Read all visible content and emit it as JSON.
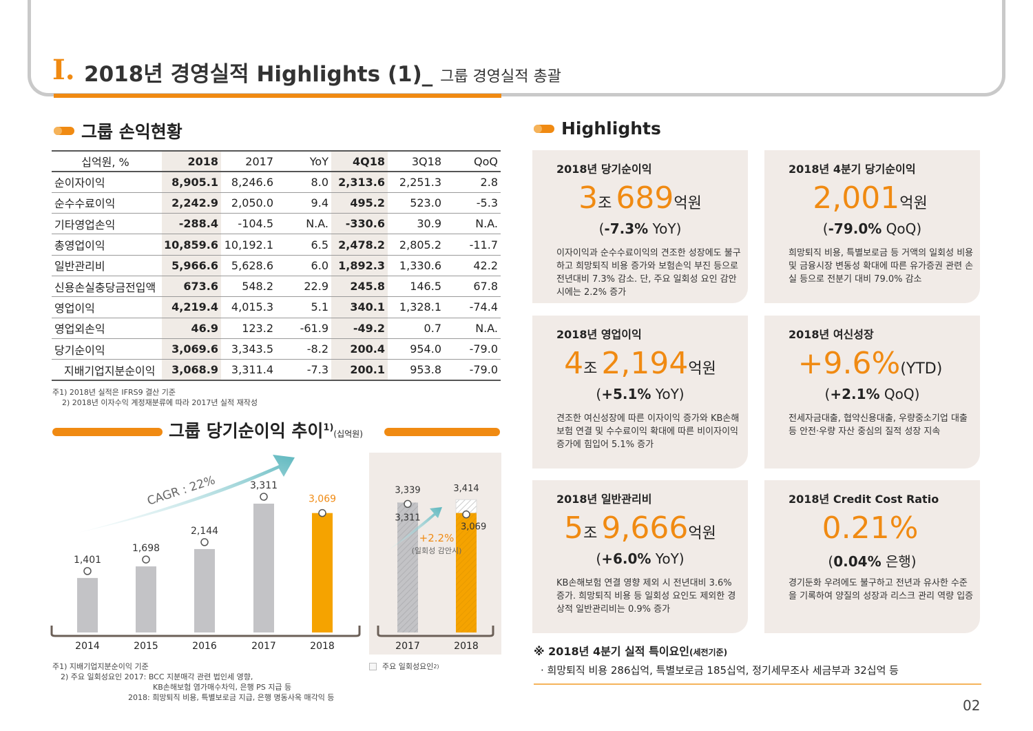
{
  "header": {
    "roman": "I.",
    "title": "2018년 경영실적 Highlights (1)_",
    "subtitle": "그룹 경영실적 총괄"
  },
  "income": {
    "title": "그룹 손익현황",
    "columns": [
      "십억원, %",
      "2018",
      "2017",
      "YoY",
      "4Q18",
      "3Q18",
      "QoQ"
    ],
    "rows": [
      [
        "순이자이익",
        "8,905.1",
        "8,246.6",
        "8.0",
        "2,313.6",
        "2,251.3",
        "2.8"
      ],
      [
        "순수수료이익",
        "2,242.9",
        "2,050.0",
        "9.4",
        "495.2",
        "523.0",
        "-5.3"
      ],
      [
        "기타영업손익",
        "-288.4",
        "-104.5",
        "N.A.",
        "-330.6",
        "30.9",
        "N.A."
      ],
      [
        "총영업이익",
        "10,859.6",
        "10,192.1",
        "6.5",
        "2,478.2",
        "2,805.2",
        "-11.7"
      ],
      [
        "일반관리비",
        "5,966.6",
        "5,628.6",
        "6.0",
        "1,892.3",
        "1,330.6",
        "42.2"
      ],
      [
        "신용손실충당금전입액",
        "673.6",
        "548.2",
        "22.9",
        "245.8",
        "146.5",
        "67.8"
      ],
      [
        "영업이익",
        "4,219.4",
        "4,015.3",
        "5.1",
        "340.1",
        "1,328.1",
        "-74.4"
      ],
      [
        "영업외손익",
        "46.9",
        "123.2",
        "-61.9",
        "-49.2",
        "0.7",
        "N.A."
      ],
      [
        "당기순이익",
        "3,069.6",
        "3,343.5",
        "-8.2",
        "200.4",
        "954.0",
        "-79.0"
      ],
      [
        "지배기업지분순이익",
        "3,068.9",
        "3,311.4",
        "-7.3",
        "200.1",
        "953.8",
        "-79.0"
      ]
    ],
    "note1": "주1) 2018년 실적은 IFRS9 결산 기준",
    "note2": "2) 2018년 이자수익 계정재분류에 따라 2017년 실적 재작성"
  },
  "trend": {
    "title": "그룹 당기순이익 추이",
    "sup": "1)",
    "unit": "(십억원)",
    "cagr": "CAGR : 22%",
    "note1": "주1) 지배기업지분순이익 기준",
    "note2": "2) 주요 일회성요인 2017: BCC 지분매각 관련 법인세 영향,",
    "note3": "KB손해보험 염가매수차익, 은행 PS 지급 등",
    "note4": "2018: 희망퇴직 비용, 특별보로금 지급, 은행 명동사옥 매각익 등",
    "legend": "주요 일회성요인",
    "legend_sup": "2)",
    "growth": "+2.2%",
    "growth_note": "(일회성 감안시)",
    "accent_color": "#f5a300",
    "bar_color": "#c3c3c6"
  },
  "chart_data": [
    {
      "type": "bar",
      "categories": [
        "2014",
        "2015",
        "2016",
        "2017",
        "2018"
      ],
      "values": [
        1401,
        1698,
        2144,
        3311,
        3069
      ],
      "labels": [
        "1,401",
        "1,698",
        "2,144",
        "3,311",
        "3,069"
      ],
      "ylim": [
        0,
        3700
      ]
    },
    {
      "type": "bar",
      "categories": [
        "2017",
        "2018"
      ],
      "values": [
        3311,
        3069
      ],
      "labels": [
        "3,311",
        "3,069"
      ],
      "adjusted_values": [
        3339,
        3414
      ],
      "adjusted_labels": [
        "3,339",
        "3,414"
      ],
      "ylim": [
        0,
        3700
      ]
    }
  ],
  "highlights": {
    "title": "Highlights",
    "cards": [
      {
        "title": "2018년 당기순이익",
        "big_a": "3",
        "unit_a": "조",
        "big_b": "689",
        "unit_b": "억원",
        "sub_a": "(",
        "sub_b": "-7.3%",
        "sub_c": " YoY)",
        "desc": "이자이익과 순수수료이익의 견조한 성장에도 불구하고 희망퇴직 비용 증가와 보험손익 부진 등으로 전년대비 7.3% 감소. 단, 주요 일회성 요인 감안 시에는 2.2% 증가"
      },
      {
        "title": "2018년 4분기 당기순이익",
        "big_a": "2,001",
        "unit_a": "억원",
        "big_b": "",
        "unit_b": "",
        "sub_a": "(",
        "sub_b": "-79.0%",
        "sub_c": " QoQ)",
        "desc": "희망퇴직 비용, 특별보로금 등 거액의 일회성 비용 및 금융시장 변동성 확대에 따른 유가증권 관련 손실 등으로 전분기 대비 79.0% 감소"
      },
      {
        "title": "2018년 영업이익",
        "big_a": "4",
        "unit_a": "조",
        "big_b": "2,194",
        "unit_b": "억원",
        "sub_a": "(",
        "sub_b": "+5.1%",
        "sub_c": " YoY)",
        "desc": "견조한 여신성장에 따른 이자이익 증가와 KB손해보험 연결 및 수수료이익 확대에 따른 비이자이익 증가에 힘입어 5.1% 증가"
      },
      {
        "title": "2018년 여신성장",
        "big_a": "+9.6%",
        "unit_a": "(YTD)",
        "big_b": "",
        "unit_b": "",
        "sub_a": "(",
        "sub_b": "+2.1%",
        "sub_c": " QoQ)",
        "desc": "전세자금대출, 협약신용대출, 우량중소기업 대출 등 안전·우량 자산 중심의 질적 성장 지속"
      },
      {
        "title": "2018년 일반관리비",
        "big_a": "5",
        "unit_a": "조",
        "big_b": "9,666",
        "unit_b": "억원",
        "sub_a": "(",
        "sub_b": "+6.0%",
        "sub_c": " YoY)",
        "desc": "KB손해보험 연결 영향 제외 시 전년대비 3.6% 증가. 희망퇴직 비용 등 일회성 요인도 제외한 경상적 일반관리비는 0.9% 증가"
      },
      {
        "title": "2018년 Credit Cost Ratio",
        "big_a": "0.21%",
        "unit_a": "",
        "big_b": "",
        "unit_b": "",
        "sub_a": "(",
        "sub_b": "0.04%",
        "sub_c": " 은행)",
        "desc": "경기둔화 우려에도 불구하고 전년과 유사한 수준을 기록하여 양질의 성장과 리스크 관리 역량 입증"
      }
    ]
  },
  "special": {
    "title": "※ 2018년 4분기 실적 특이요인",
    "title_small": "(세전기준)",
    "text": "· 희망퇴직 비용 286십억, 특별보로금 185십억, 정기세무조사 세금부과 32십억 등"
  },
  "page_number": "02"
}
